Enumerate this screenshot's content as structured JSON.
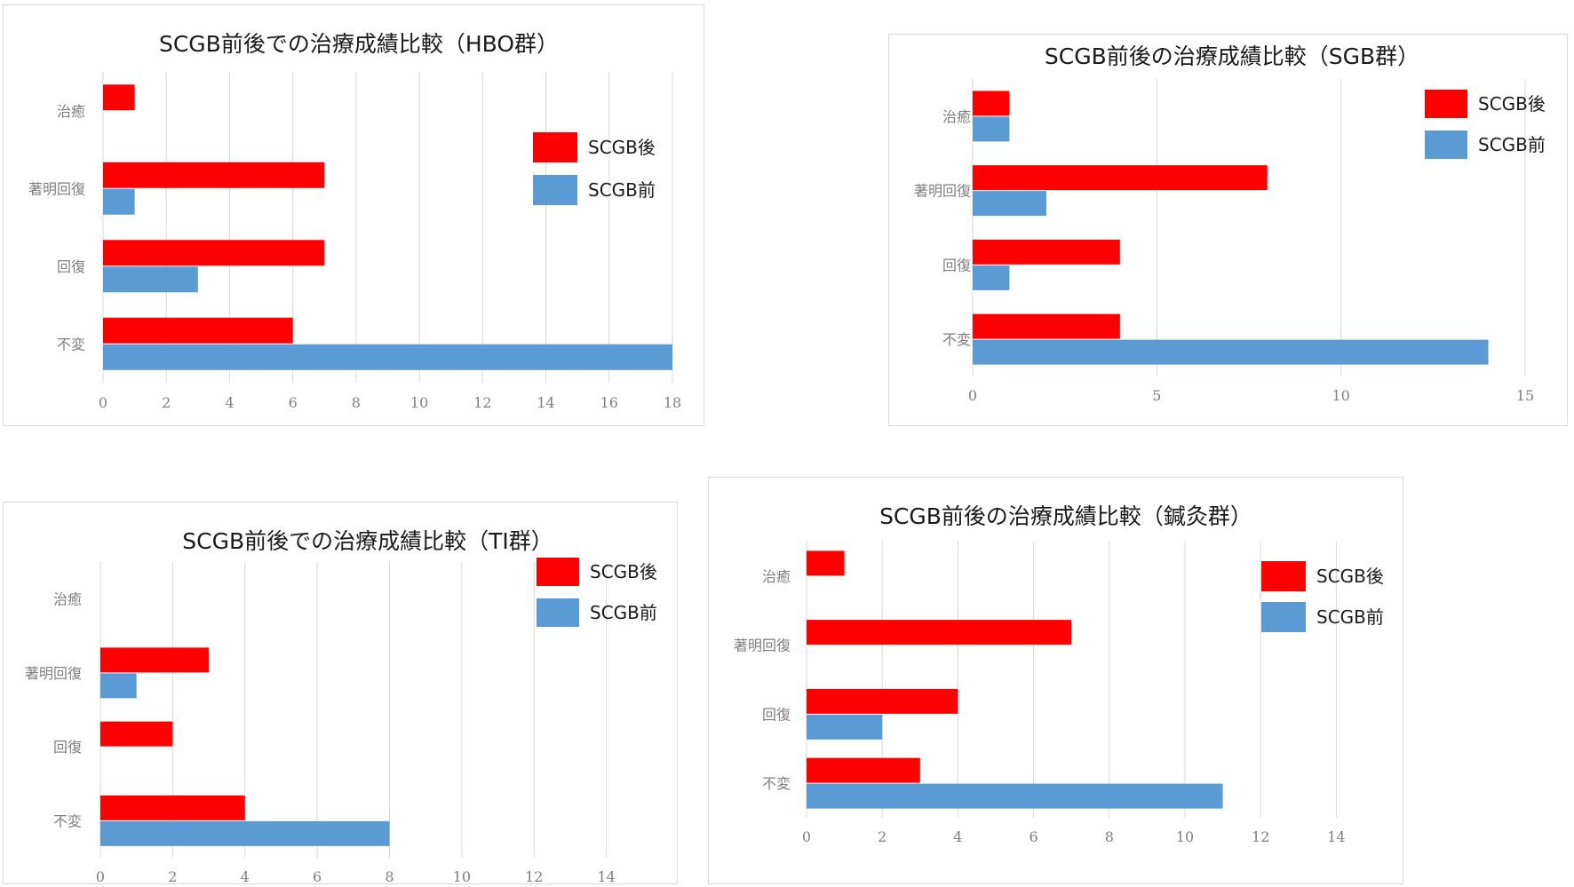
{
  "colors": {
    "after": "#ff0000",
    "before": "#5b9bd5"
  },
  "chart_data": [
    {
      "type": "bar",
      "orientation": "horizontal",
      "title": "SCGB前後での治療成績比較（HBO群）",
      "categories": [
        "治癒",
        "著明回復",
        "回復",
        "不変"
      ],
      "series": [
        {
          "name": "SCGB後",
          "values": [
            1,
            7,
            7,
            6
          ]
        },
        {
          "name": "SCGB前",
          "values": [
            0,
            1,
            3,
            18
          ]
        }
      ],
      "xlim": [
        0,
        18
      ],
      "xticks": [
        0,
        2,
        4,
        6,
        8,
        10,
        12,
        14,
        16,
        18
      ],
      "grid": true,
      "legend": "right"
    },
    {
      "type": "bar",
      "orientation": "horizontal",
      "title": "SCGB前後の治療成績比較（SGB群）",
      "categories": [
        "治癒",
        "著明回復",
        "回復",
        "不変"
      ],
      "series": [
        {
          "name": "SCGB後",
          "values": [
            1,
            8,
            4,
            4
          ]
        },
        {
          "name": "SCGB前",
          "values": [
            1,
            2,
            1,
            14
          ]
        }
      ],
      "xlim": [
        0,
        15
      ],
      "xticks": [
        0,
        5,
        10,
        15
      ],
      "grid": true,
      "legend": "top-right"
    },
    {
      "type": "bar",
      "orientation": "horizontal",
      "title": "SCGB前後での治療成績比較（TI群）",
      "categories": [
        "治癒",
        "著明回復",
        "回復",
        "不変"
      ],
      "series": [
        {
          "name": "SCGB後",
          "values": [
            0,
            3,
            2,
            4
          ]
        },
        {
          "name": "SCGB前",
          "values": [
            0,
            1,
            0,
            8
          ]
        }
      ],
      "xlim": [
        0,
        16
      ],
      "xticks": [
        0,
        2,
        4,
        6,
        8,
        10,
        12,
        14
      ],
      "grid": true,
      "legend": "right"
    },
    {
      "type": "bar",
      "orientation": "horizontal",
      "title": "SCGB前後の治療成績比較（鍼灸群）",
      "categories": [
        "治癒",
        "著明回復",
        "回復",
        "不変"
      ],
      "series": [
        {
          "name": "SCGB後",
          "values": [
            1,
            7,
            4,
            3
          ]
        },
        {
          "name": "SCGB前",
          "values": [
            0,
            0,
            2,
            11
          ]
        }
      ],
      "xlim": [
        0,
        15
      ],
      "xticks": [
        0,
        2,
        4,
        6,
        8,
        10,
        12,
        14
      ],
      "grid": true,
      "legend": "top-right"
    }
  ]
}
